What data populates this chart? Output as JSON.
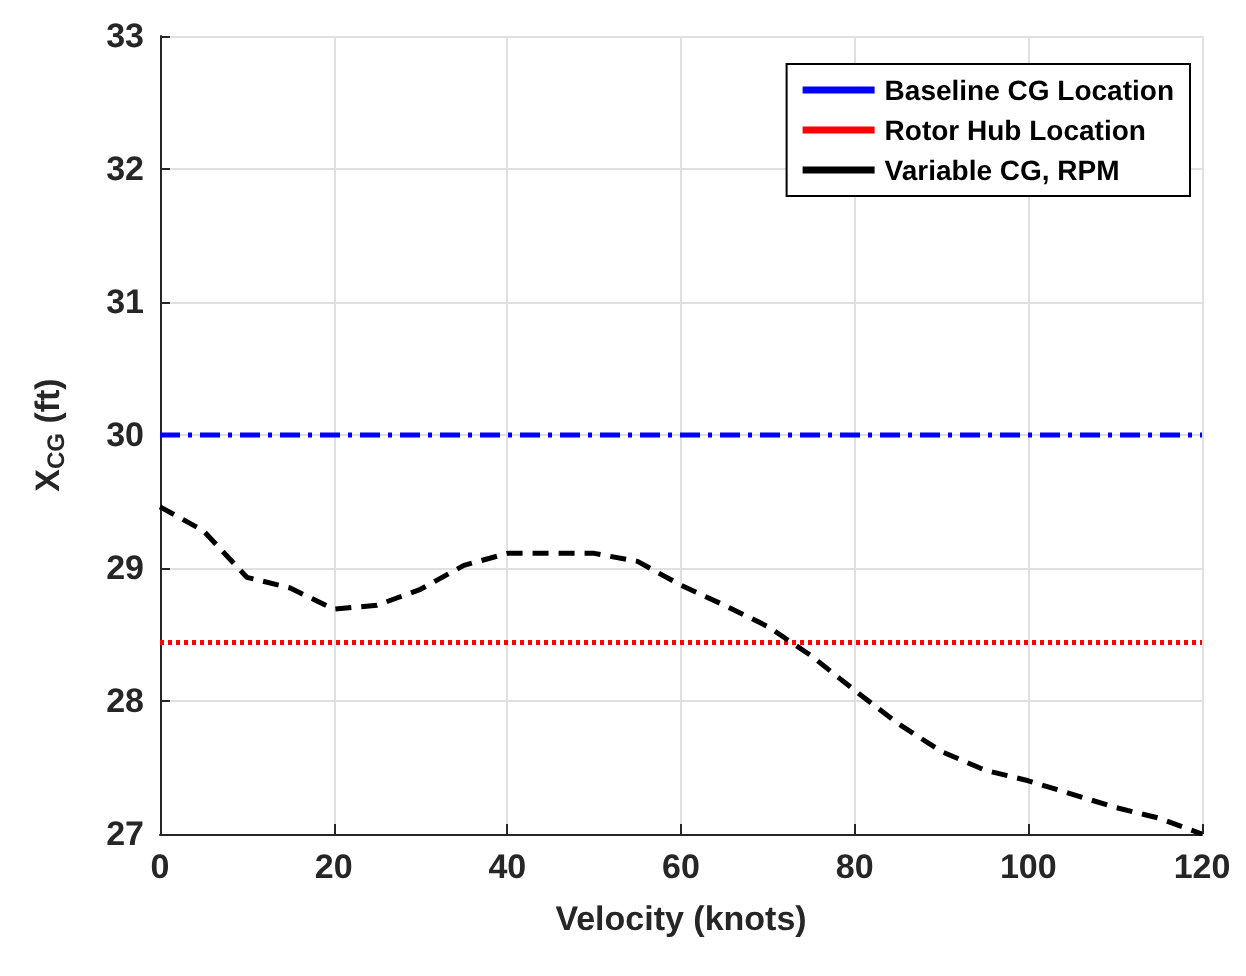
{
  "chart_data": {
    "type": "line",
    "xlabel": "Velocity (knots)",
    "ylabel": "X$_{CG}$ (ft)",
    "xlim": [
      0,
      120
    ],
    "xticks": [
      0,
      20,
      40,
      60,
      80,
      100,
      120
    ],
    "ylim": [
      27,
      33
    ],
    "yticks": [
      27,
      28,
      29,
      30,
      31,
      32,
      33
    ],
    "grid": true,
    "legend": "top right",
    "marker": "none",
    "series": [
      {
        "name": "Baseline CG Location",
        "color": "#0000ff",
        "line_style": "dashdot",
        "x": [
          0,
          120
        ],
        "values": [
          30,
          30
        ]
      },
      {
        "name": "Rotor Hub Location",
        "color": "#ff0000",
        "line_style": "dotted",
        "x": [
          0,
          120
        ],
        "values": [
          28.44,
          28.44
        ]
      },
      {
        "name": "Variable CG, RPM",
        "color": "#000000",
        "line_style": "dashed",
        "x": [
          0,
          5,
          10,
          15,
          20,
          25,
          30,
          35,
          40,
          45,
          50,
          55,
          60,
          65,
          70,
          75,
          80,
          85,
          90,
          95,
          100,
          105,
          110,
          115,
          120
        ],
        "values": [
          29.46,
          29.28,
          28.93,
          28.85,
          28.69,
          28.72,
          28.84,
          29.02,
          29.11,
          29.11,
          29.11,
          29.05,
          28.87,
          28.72,
          28.56,
          28.34,
          28.08,
          27.83,
          27.62,
          27.48,
          27.4,
          27.3,
          27.2,
          27.12,
          27.0
        ]
      }
    ]
  }
}
